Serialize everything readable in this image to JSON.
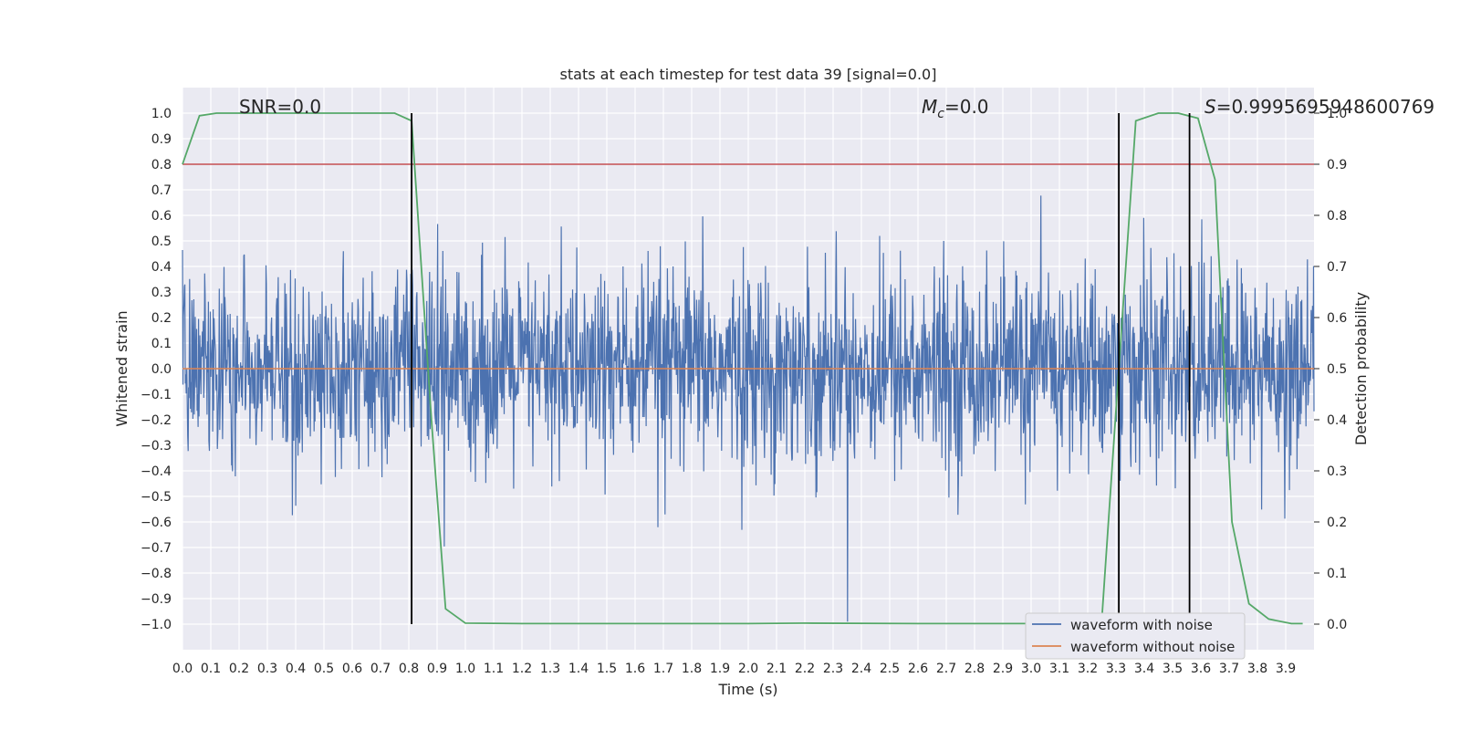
{
  "chart_data": {
    "type": "line",
    "title": "stats at each timestep for test data 39 [signal=0.0]",
    "xlabel": "Time (s)",
    "ylabel": "Whitened strain",
    "y2label": "Detection probability",
    "xlim": [
      0.0,
      4.0
    ],
    "ylim": [
      -1.1,
      1.1
    ],
    "y2lim": [
      -0.05,
      1.05
    ],
    "xticks": [
      "0.0",
      "0.1",
      "0.2",
      "0.3",
      "0.4",
      "0.5",
      "0.6",
      "0.7",
      "0.8",
      "0.9",
      "1.0",
      "1.1",
      "1.2",
      "1.3",
      "1.4",
      "1.5",
      "1.6",
      "1.7",
      "1.8",
      "1.9",
      "2.0",
      "2.1",
      "2.2",
      "2.3",
      "2.4",
      "2.5",
      "2.6",
      "2.7",
      "2.8",
      "2.9",
      "3.0",
      "3.1",
      "3.2",
      "3.3",
      "3.4",
      "3.5",
      "3.6",
      "3.7",
      "3.8",
      "3.9"
    ],
    "yticks": [
      "1.0",
      "0.9",
      "0.8",
      "0.7",
      "0.6",
      "0.5",
      "0.4",
      "0.3",
      "0.2",
      "0.1",
      "0.0",
      "−0.1",
      "−0.2",
      "−0.3",
      "−0.4",
      "−0.5",
      "−0.6",
      "−0.7",
      "−0.8",
      "−0.9",
      "−1.0"
    ],
    "y2ticks": [
      "1.0",
      "0.9",
      "0.8",
      "0.7",
      "0.6",
      "0.5",
      "0.4",
      "0.3",
      "0.2",
      "0.1",
      "0.0"
    ],
    "grid": true,
    "legend_position": "bottom-right",
    "series": [
      {
        "name": "waveform with noise",
        "color": "#4c72b0",
        "note_values": "dense noise, amplitude mostly within ±0.5 with spikes up to ~0.92 and down to ~-0.99"
      },
      {
        "name": "waveform without noise",
        "color": "#dd8452",
        "constant_value": 0.0
      },
      {
        "color": "#55a868",
        "axis": "right",
        "x": [
          0.0,
          0.06,
          0.12,
          0.2,
          0.4,
          0.6,
          0.75,
          0.81,
          0.88,
          0.93,
          1.0,
          1.2,
          1.6,
          2.0,
          2.2,
          2.6,
          3.0,
          3.25,
          3.31,
          3.37,
          3.45,
          3.52,
          3.59,
          3.65,
          3.71,
          3.77,
          3.84,
          3.92,
          3.96
        ],
        "y": [
          0.9,
          0.995,
          1.0,
          1.0,
          1.0,
          1.0,
          1.0,
          0.985,
          0.4,
          0.03,
          0.002,
          0.001,
          0.001,
          0.001,
          0.002,
          0.001,
          0.001,
          0.01,
          0.5,
          0.985,
          1.0,
          1.0,
          0.99,
          0.87,
          0.2,
          0.04,
          0.01,
          0.001,
          0.001
        ]
      },
      {
        "color": "#c44e52",
        "axis": "right",
        "constant_value": 0.9
      }
    ],
    "vlines": [
      0.81,
      3.31,
      3.56
    ],
    "annotations": {
      "snr": "SNR=0.0",
      "mc_symbol": "M",
      "mc_sub": "c",
      "mc_value": "=0.0",
      "s_symbol": "S",
      "s_value": "=0.9995695948600769"
    }
  }
}
